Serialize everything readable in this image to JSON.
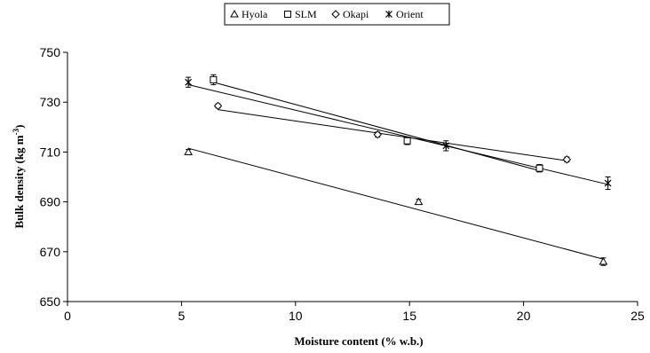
{
  "chart_data": {
    "type": "scatter",
    "title": "",
    "xlabel": "Moisture content (% w.b.)",
    "ylabel": "Bulk density (kg m",
    "ylabel_sup": "-3",
    "ylabel_close": ")",
    "xlim": [
      0,
      25
    ],
    "ylim": [
      650,
      750
    ],
    "xticks": [
      "0",
      "5",
      "10",
      "15",
      "20",
      "25"
    ],
    "yticks": [
      "650",
      "670",
      "690",
      "710",
      "730",
      "750"
    ],
    "legend_position": "top-center",
    "grid": false,
    "series": [
      {
        "name": "Hyola",
        "marker": "triangle",
        "points": [
          {
            "x": 5.3,
            "y": 710,
            "err": 1
          },
          {
            "x": 15.4,
            "y": 690,
            "err": 1
          },
          {
            "x": 23.5,
            "y": 666,
            "err": 1.5
          }
        ],
        "trendline": {
          "x0": 5.3,
          "y0": 711.5,
          "x1": 23.5,
          "y1": 667
        }
      },
      {
        "name": "SLM",
        "marker": "square",
        "points": [
          {
            "x": 6.4,
            "y": 739,
            "err": 2
          },
          {
            "x": 14.9,
            "y": 714.5,
            "err": 1.5
          },
          {
            "x": 20.7,
            "y": 703.5,
            "err": 1.5
          }
        ],
        "trendline": {
          "x0": 6.4,
          "y0": 738,
          "x1": 20.7,
          "y1": 702.5
        }
      },
      {
        "name": "Okapi",
        "marker": "diamond",
        "points": [
          {
            "x": 6.6,
            "y": 728.5,
            "err": 0.8
          },
          {
            "x": 13.6,
            "y": 717,
            "err": 1
          },
          {
            "x": 21.9,
            "y": 707,
            "err": 1
          }
        ],
        "trendline": {
          "x0": 6.6,
          "y0": 727,
          "x1": 21.9,
          "y1": 706.5
        }
      },
      {
        "name": "Orient",
        "marker": "star",
        "points": [
          {
            "x": 5.3,
            "y": 738,
            "err": 2
          },
          {
            "x": 16.6,
            "y": 712.5,
            "err": 2
          },
          {
            "x": 23.7,
            "y": 697.5,
            "err": 2.5
          }
        ],
        "trendline": {
          "x0": 5.3,
          "y0": 737,
          "x1": 23.7,
          "y1": 697
        }
      }
    ]
  }
}
